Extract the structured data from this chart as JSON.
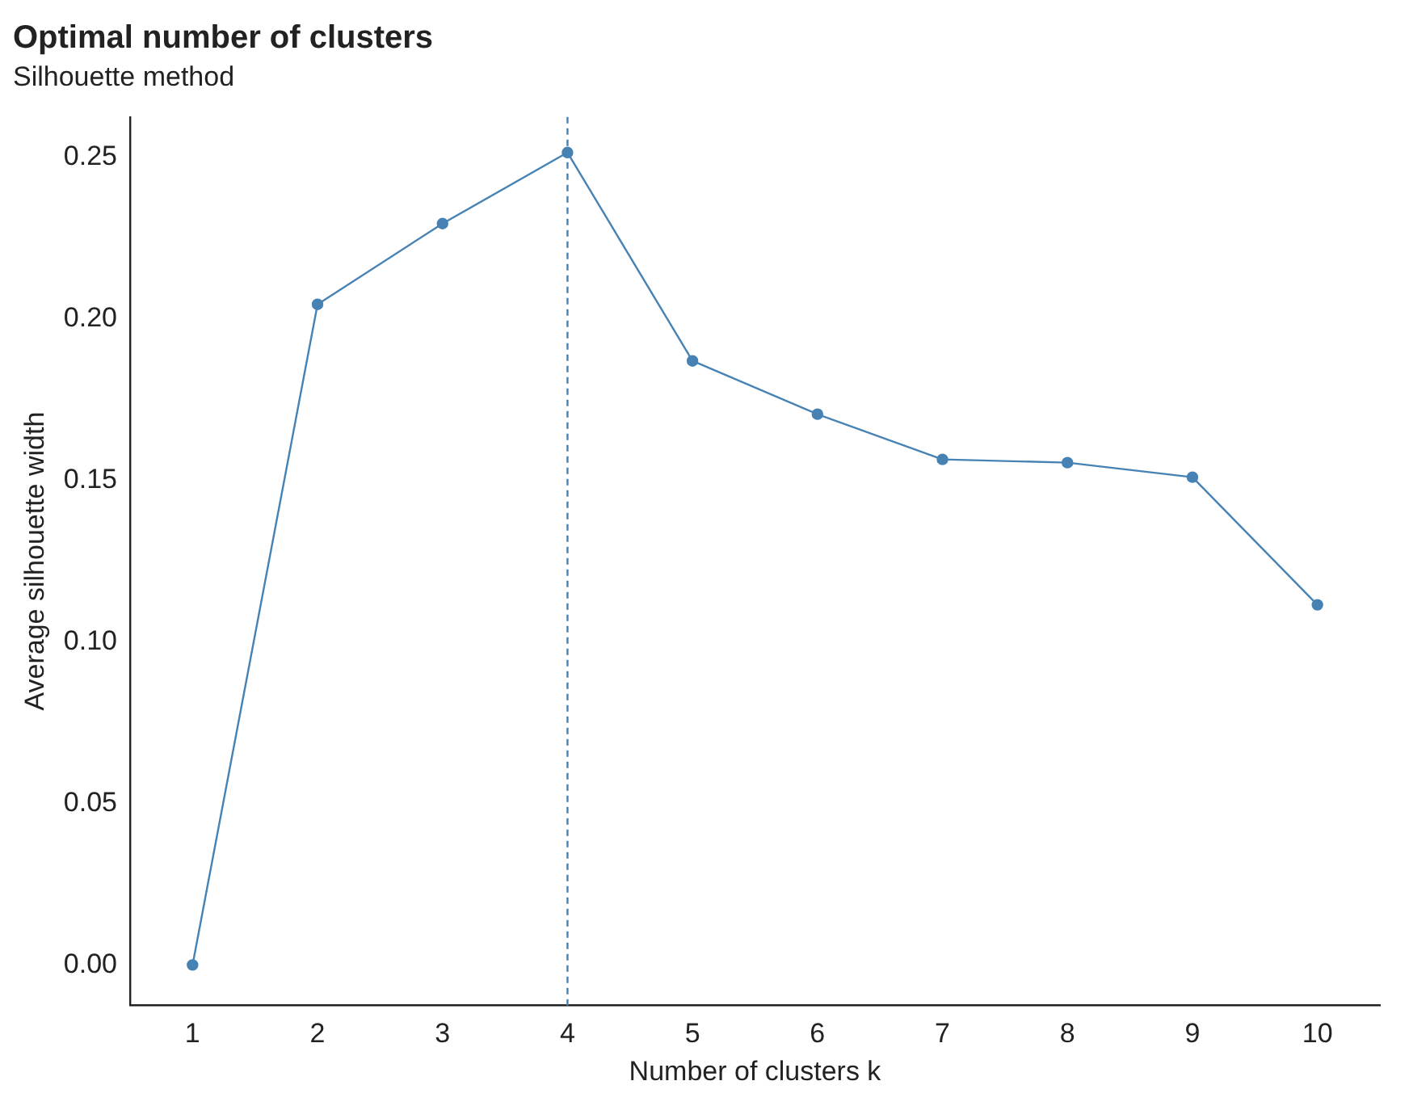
{
  "chart_data": {
    "type": "line",
    "title": "Optimal number of clusters",
    "subtitle": "Silhouette method",
    "xlabel": "Number of clusters k",
    "ylabel": "Average silhouette width",
    "categories": [
      "1",
      "2",
      "3",
      "4",
      "5",
      "6",
      "7",
      "8",
      "9",
      "10"
    ],
    "series": [
      {
        "color": "#4682b4",
        "values": [
          0,
          0.2045,
          0.2295,
          0.2515,
          0.187,
          0.1705,
          0.1565,
          0.1555,
          0.151,
          0.1115
        ]
      }
    ],
    "ylim": [
      -0.0125,
      0.2625
    ],
    "yticks": [
      {
        "value": 0,
        "label": "0.00"
      },
      {
        "value": 0.05,
        "label": "0.05"
      },
      {
        "value": 0.1,
        "label": "0.10"
      },
      {
        "value": 0.15,
        "label": "0.15"
      },
      {
        "value": 0.2,
        "label": "0.20"
      },
      {
        "value": 0.25,
        "label": "0.25"
      }
    ],
    "ref_lines": [
      {
        "axis": "x",
        "value": "4",
        "color": "#4682b4",
        "line_style": "dashed"
      }
    ],
    "grid": false,
    "legend": false,
    "marker": "circle",
    "line_style": "solid"
  }
}
